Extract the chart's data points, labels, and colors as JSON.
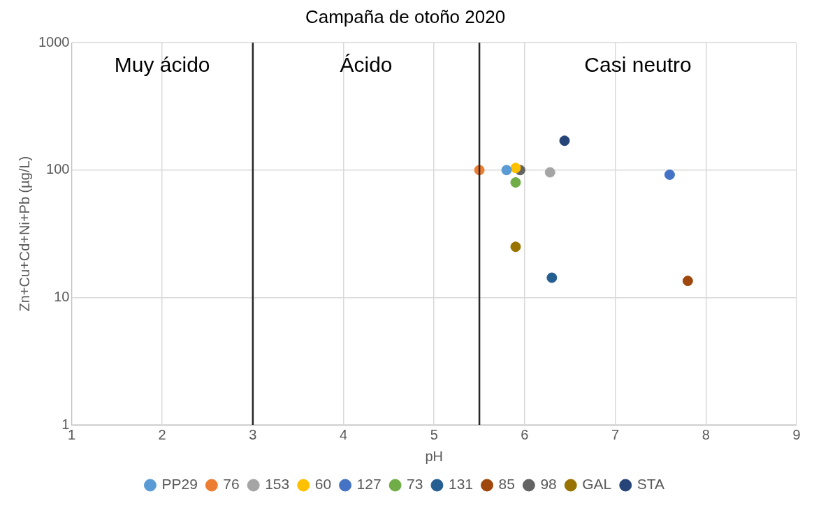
{
  "chart_data": {
    "type": "scatter",
    "title": "Campaña de otoño 2020",
    "xlabel": "pH",
    "ylabel": "Zn+Cu+Cd+Ni+Pb (µg/L)",
    "xlim": [
      1,
      9
    ],
    "xticks": [
      1,
      2,
      3,
      4,
      5,
      6,
      7,
      8,
      9
    ],
    "ylim": [
      1,
      1000
    ],
    "yticks": [
      1,
      10,
      100,
      1000
    ],
    "log": "y",
    "grid": true,
    "legend": "bottom",
    "marker": "circle",
    "series": [
      {
        "name": "PP29",
        "color": "#5b9bd5",
        "x": [
          5.8
        ],
        "values": [
          100
        ]
      },
      {
        "name": "76",
        "color": "#ed7d31",
        "x": [
          5.5
        ],
        "values": [
          100
        ]
      },
      {
        "name": "153",
        "color": "#a5a5a5",
        "x": [
          6.28
        ],
        "values": [
          96
        ]
      },
      {
        "name": "60",
        "color": "#ffc000",
        "x": [
          5.9
        ],
        "values": [
          104
        ]
      },
      {
        "name": "127",
        "color": "#4472c4",
        "x": [
          7.6
        ],
        "values": [
          92
        ]
      },
      {
        "name": "73",
        "color": "#70ad47",
        "x": [
          5.9
        ],
        "values": [
          80
        ]
      },
      {
        "name": "131",
        "color": "#255e91",
        "x": [
          6.3
        ],
        "values": [
          14.3
        ]
      },
      {
        "name": "85",
        "color": "#9e480e",
        "x": [
          7.8
        ],
        "values": [
          13.5
        ]
      },
      {
        "name": "98",
        "color": "#636363",
        "x": [
          5.95
        ],
        "values": [
          100
        ]
      },
      {
        "name": "GAL",
        "color": "#997300",
        "x": [
          5.9
        ],
        "values": [
          25
        ]
      },
      {
        "name": "STA",
        "color": "#264478",
        "x": [
          6.44
        ],
        "values": [
          170
        ]
      }
    ],
    "ref_lines": [
      {
        "axis": "x",
        "value": 3,
        "color": "#262626"
      },
      {
        "axis": "x",
        "value": 5.5,
        "color": "#262626"
      }
    ],
    "annotations": [
      "Muy ácido",
      "Ácido",
      "Casi neutro"
    ]
  }
}
